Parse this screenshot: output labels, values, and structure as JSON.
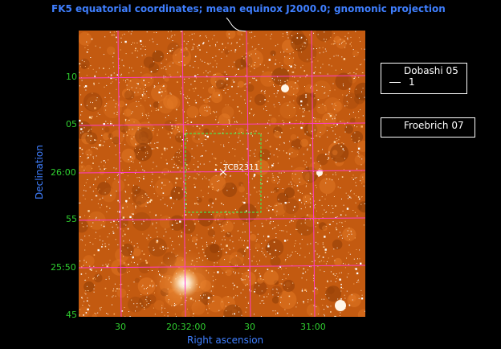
{
  "title": "FK5 equatorial coordinates; mean equinox J2000.0; gnomonic projection",
  "axes": {
    "xlabel": "Right ascension",
    "ylabel": "Declination",
    "x_ticks": [
      "30",
      "20:32:00",
      "30",
      "31:00"
    ],
    "y_ticks": [
      "10",
      "05",
      "26:00",
      "55",
      "25:50",
      "45"
    ]
  },
  "object_label": "TCB2311",
  "legend": {
    "dobashi": {
      "title": "Dobashi 05",
      "value": "1"
    },
    "froebrich": {
      "title": "Froebrich 07"
    }
  },
  "colors": {
    "background": "#000000",
    "sky_base": "#c35a10",
    "grid": "#ff3cc8",
    "tick_labels": "#30d030",
    "axis_labels": "#3f7fff",
    "box": "#4ee04e"
  }
}
